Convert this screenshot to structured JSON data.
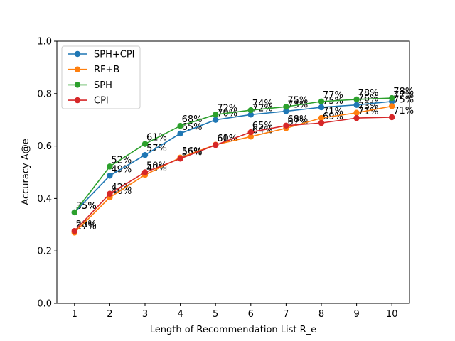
{
  "chart_data": {
    "type": "line",
    "title": "",
    "xlabel": "Length of Recommendation List R_e",
    "ylabel": "Accuracy A@e",
    "x": [
      1,
      2,
      3,
      4,
      5,
      6,
      7,
      8,
      9,
      10
    ],
    "xlim": [
      0.5,
      10.5
    ],
    "ylim": [
      0.0,
      1.0
    ],
    "yticks": [
      "0.0",
      "0.2",
      "0.4",
      "0.6",
      "0.8",
      "1.0"
    ],
    "xticks": [
      "1",
      "2",
      "3",
      "4",
      "5",
      "6",
      "7",
      "8",
      "9",
      "10"
    ],
    "grid": false,
    "legend_position": "top-left",
    "series": [
      {
        "name": "SPH+CPI",
        "color": "#1f77b4",
        "values": [
          0.347,
          0.487,
          0.566,
          0.648,
          0.7,
          0.72,
          0.733,
          0.748,
          0.757,
          0.77
        ],
        "labels": [
          "35%",
          "49%",
          "57%",
          "65%",
          "70%",
          "72%",
          "73%",
          "75%",
          "76%",
          "77%"
        ]
      },
      {
        "name": "RF+B",
        "color": "#ff7f0e",
        "values": [
          0.27,
          0.404,
          0.49,
          0.556,
          0.605,
          0.636,
          0.668,
          0.707,
          0.727,
          0.752
        ],
        "labels": [
          "27%",
          "40%",
          "49%",
          "56%",
          "61%",
          "64%",
          "67%",
          "71%",
          "73%",
          "75%"
        ]
      },
      {
        "name": "SPH",
        "color": "#2ca02c",
        "values": [
          0.347,
          0.522,
          0.608,
          0.677,
          0.72,
          0.737,
          0.75,
          0.77,
          0.778,
          0.783
        ],
        "labels": [
          "35%",
          "52%",
          "61%",
          "68%",
          "72%",
          "74%",
          "75%",
          "77%",
          "78%",
          "78%"
        ]
      },
      {
        "name": "CPI",
        "color": "#d62728",
        "values": [
          0.276,
          0.418,
          0.5,
          0.552,
          0.604,
          0.653,
          0.678,
          0.688,
          0.707,
          0.71
        ],
        "labels": [
          "28%",
          "42%",
          "50%",
          "55%",
          "60%",
          "65%",
          "68%",
          "69%",
          "71%",
          "71%"
        ]
      }
    ]
  }
}
